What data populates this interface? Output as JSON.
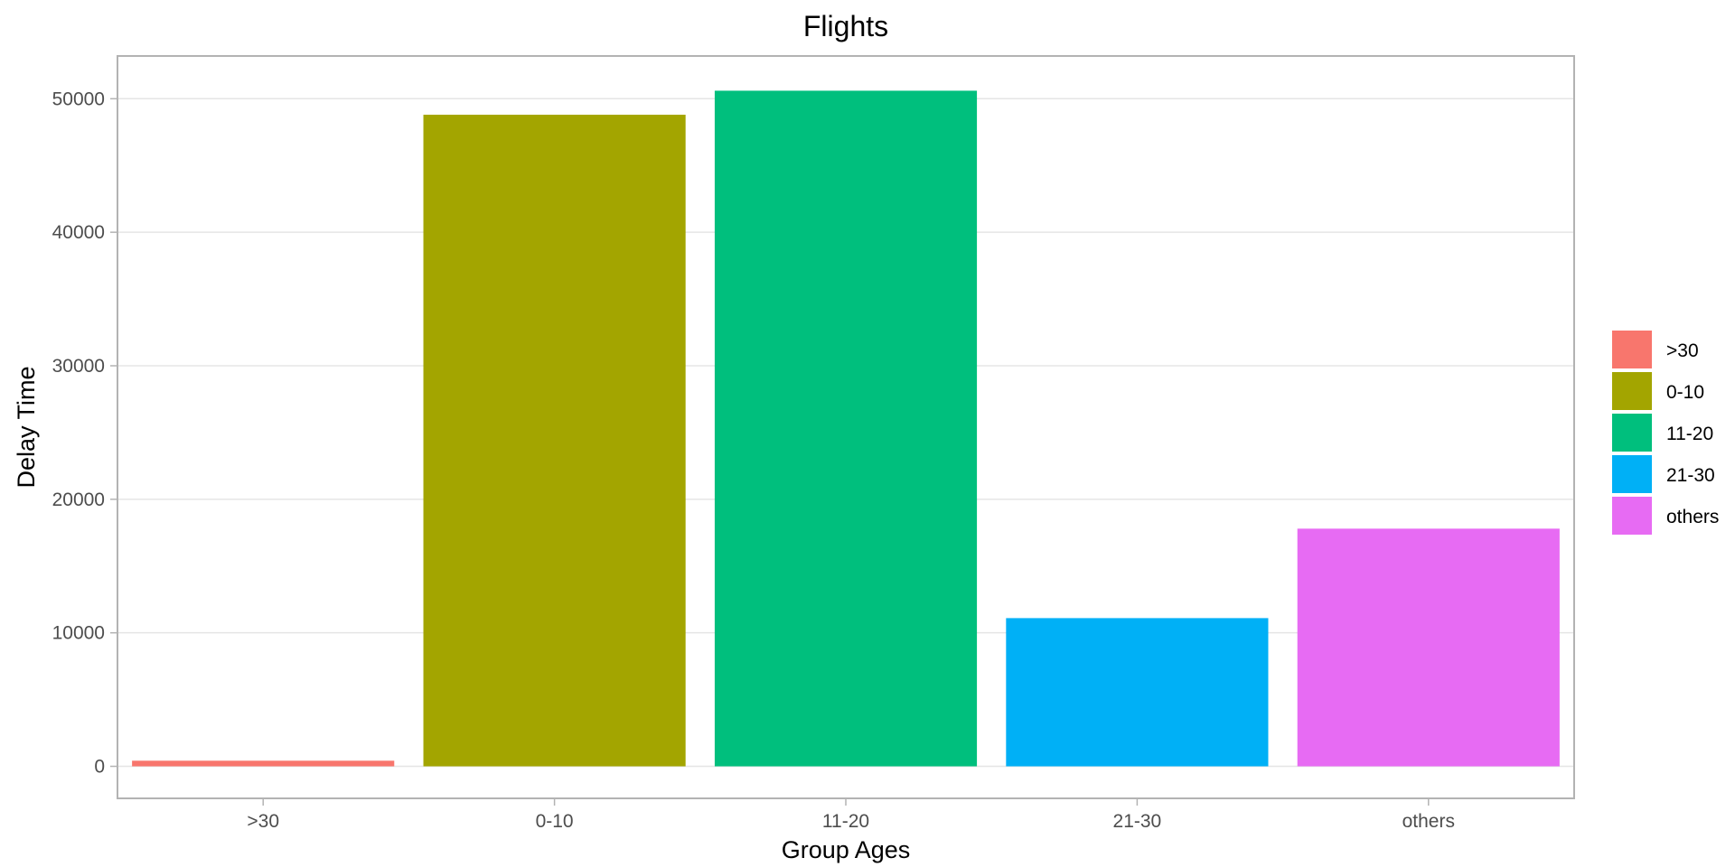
{
  "chart_data": {
    "type": "bar",
    "title": "Flights",
    "xlabel": "Group Ages",
    "ylabel": "Delay Time",
    "categories": [
      ">30",
      "0-10",
      "11-20",
      "21-30",
      "others"
    ],
    "values": [
      420,
      48800,
      50600,
      11100,
      17800
    ],
    "colors": [
      "#F8766D",
      "#A3A500",
      "#00BF7D",
      "#00B0F6",
      "#E76BF3"
    ],
    "ylim": [
      -2400,
      53200
    ],
    "yticks": [
      0,
      10000,
      20000,
      30000,
      40000,
      50000
    ],
    "grid": true,
    "legend": {
      "placement": "right",
      "entries": [
        ">30",
        "0-10",
        "11-20",
        "21-30",
        "others"
      ]
    }
  }
}
